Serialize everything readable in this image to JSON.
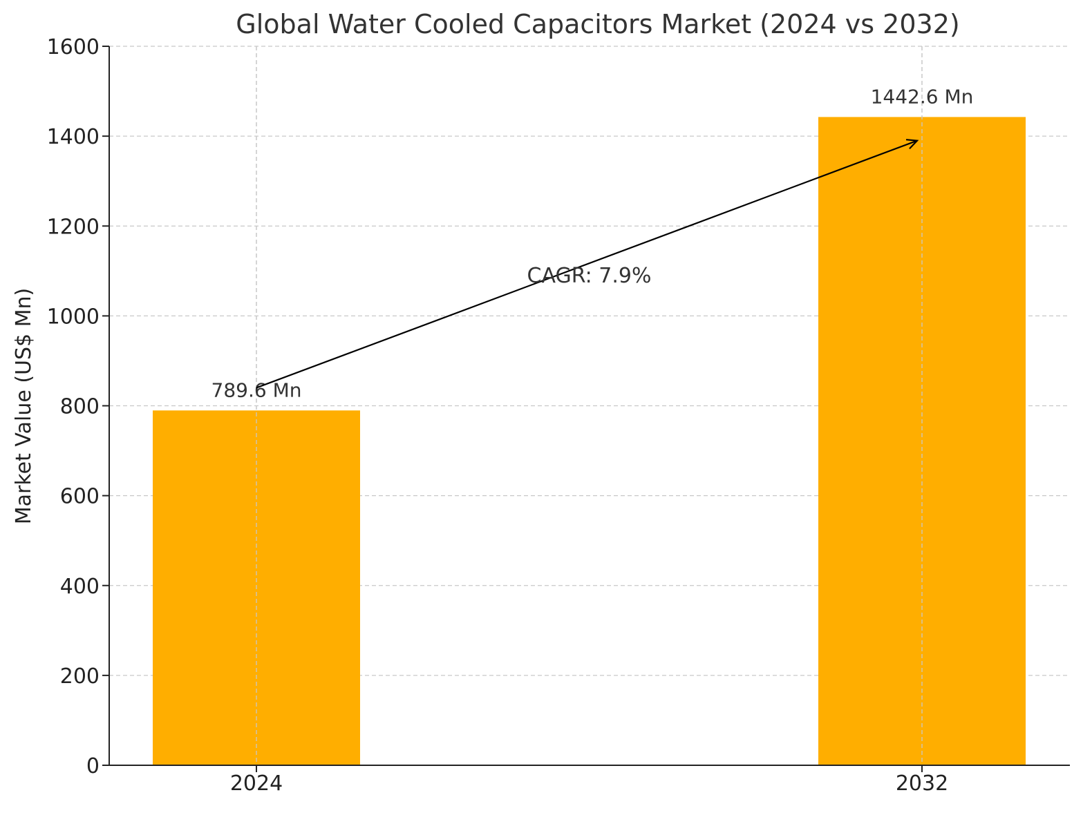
{
  "chart_data": {
    "type": "bar",
    "title": "Global Water Cooled Capacitors Market (2024 vs 2032)",
    "xlabel": "",
    "ylabel": "Market Value (US$ Mn)",
    "categories": [
      "2024",
      "2032"
    ],
    "values": [
      789.6,
      1442.6
    ],
    "data_labels": [
      "789.6 Mn",
      "1442.6 Mn"
    ],
    "ylim": [
      0,
      1600
    ],
    "yticks": [
      0,
      200,
      400,
      600,
      800,
      1000,
      1200,
      1400,
      1600
    ],
    "grid": true,
    "bar_color": "#FFAE00",
    "annotation": {
      "text": "CAGR: 7.9%",
      "arrow_from": {
        "category": "2024",
        "value": 840
      },
      "arrow_to": {
        "category": "2032",
        "value": 1390
      },
      "text_anchor_value": 1090
    }
  }
}
